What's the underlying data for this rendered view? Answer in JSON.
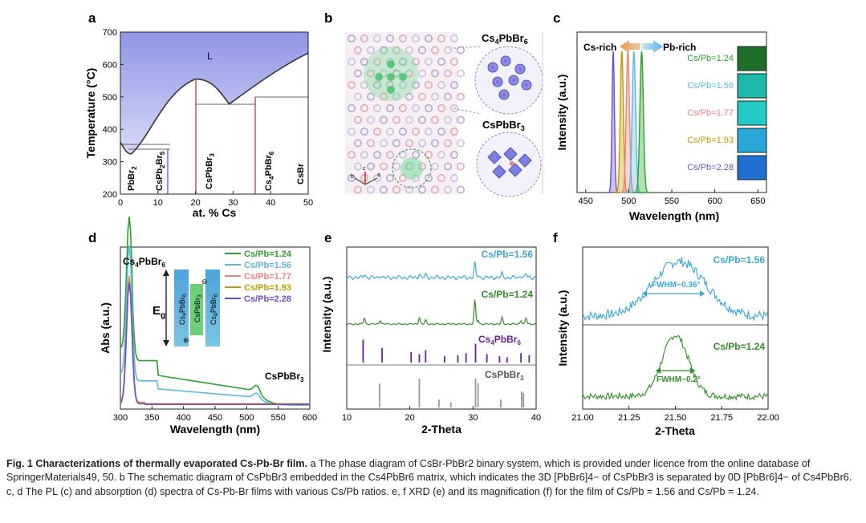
{
  "panels": {
    "a": {
      "letter": "a",
      "xlabel": "at. % Cs",
      "ylabel": "Temperature (°C)",
      "xticks": [
        "0",
        "10",
        "20",
        "30",
        "40",
        "50"
      ],
      "yticks": [
        "200",
        "300",
        "400",
        "500",
        "600",
        "700"
      ],
      "region": "L",
      "phases": [
        "PbBr2",
        "CsPb2Br5",
        "CsPbBr3",
        "Cs4PbBr6",
        "CsBr"
      ]
    },
    "b": {
      "letter": "b",
      "label_top": "Cs4PbBr6",
      "label_bottom": "CsPbBr3"
    },
    "c": {
      "letter": "c",
      "xlabel": "Wavelength (nm)",
      "ylabel": "Intensity (a.u.)",
      "xticks": [
        "450",
        "500",
        "550",
        "600",
        "650"
      ],
      "arrow_left": "Cs-rich",
      "arrow_right": "Pb-rich"
    },
    "d": {
      "letter": "d",
      "xlabel": "Wavelength (nm)",
      "ylabel": "Abs (a.u.)",
      "xticks": [
        "300",
        "350",
        "400",
        "450",
        "500",
        "550",
        "600"
      ],
      "peak_label": "Cs4PbBr6",
      "shoulder_label": "CsPbBr3",
      "eg_label": "Eg",
      "inset_outer": "Cs4PbBr6",
      "inset_inner": "CsPbBr3"
    },
    "e": {
      "letter": "e",
      "xlabel": "2-Theta",
      "ylabel": "Intensity (a.u.)",
      "xticks": [
        "10",
        "20",
        "30",
        "40"
      ],
      "label_156": "Cs/Pb=1.56",
      "label_124": "Cs/Pb=1.24",
      "ref1": "Cs4PbBr6",
      "ref2": "CsPbBr3"
    },
    "f": {
      "letter": "f",
      "xlabel": "2-Theta",
      "ylabel": "Intensity (a.u.)",
      "xticks": [
        "21.00",
        "21.25",
        "21.50",
        "21.75",
        "22.00"
      ],
      "label_156": "Cs/Pb=1.56",
      "label_124": "Cs/Pb=1.24",
      "fwhm_156": "FWHM~0.36°",
      "fwhm_124": "FWHM~0.2°"
    }
  },
  "ratios": [
    {
      "name": "Cs/Pb=1.24",
      "color": "#2ca02c"
    },
    {
      "name": "Cs/Pb=1.56",
      "color": "#5bb8e0"
    },
    {
      "name": "Cs/Pb=1.77",
      "color": "#f08080"
    },
    {
      "name": "Cs/Pb=1.93",
      "color": "#c49a00"
    },
    {
      "name": "Cs/Pb=2.28",
      "color": "#6a4fc7"
    }
  ],
  "caption": {
    "fig_label": "Fig. 1 Characterizations of thermally evaporated Cs-Pb-Br film.",
    "text": " a The phase diagram of CsBr-PbBr2 binary system, which is provided under licence from the online database of SpringerMaterials49, 50. b The schematic diagram of CsPbBr3 embedded in the Cs4PbBr6 matrix, which indicates the 3D [PbBr6]4− of CsPbBr3 is separated by 0D [PbBr6]4− of Cs4PbBr6. c, d The PL (c) and absorption (d) spectra of Cs-Pb-Br films with various Cs/Pb ratios. e, f XRD (e) and its magnification (f) for the film of Cs/Pb = 1.56 and Cs/Pb = 1.24."
  },
  "chart_data": [
    {
      "type": "line",
      "panel": "a",
      "xlabel": "at. % Cs",
      "ylabel": "Temperature (°C)",
      "xlim": [
        0,
        50
      ],
      "ylim": [
        200,
        700
      ],
      "series": [
        {
          "x": [
            0,
            3,
            10,
            20,
            25,
            29,
            36,
            40,
            50
          ],
          "y": [
            360,
            325,
            450,
            555,
            540,
            478,
            515,
            560,
            635
          ]
        }
      ]
    },
    {
      "type": "line",
      "panel": "c",
      "xlabel": "Wavelength (nm)",
      "ylabel": "Intensity (a.u.)",
      "xlim": [
        440,
        660
      ],
      "series": [
        {
          "name": "Cs/Pb=1.24",
          "peak": 515
        },
        {
          "name": "Cs/Pb=1.56",
          "peak": 506
        },
        {
          "name": "Cs/Pb=1.77",
          "peak": 499
        },
        {
          "name": "Cs/Pb=1.93",
          "peak": 492
        },
        {
          "name": "Cs/Pb=2.28",
          "peak": 482
        }
      ]
    },
    {
      "type": "line",
      "panel": "d",
      "xlabel": "Wavelength (nm)",
      "ylabel": "Abs (a.u.)",
      "xlim": [
        300,
        600
      ],
      "series": [
        {
          "name": "Cs/Pb=1.24",
          "peak": 314
        },
        {
          "name": "Cs/Pb=1.56",
          "peak": 314
        },
        {
          "name": "Cs/Pb=1.77",
          "peak": 314
        },
        {
          "name": "Cs/Pb=1.93",
          "peak": 314
        },
        {
          "name": "Cs/Pb=2.28",
          "peak": 314
        }
      ]
    },
    {
      "type": "line",
      "panel": "e",
      "xlabel": "2-Theta",
      "ylabel": "Intensity (a.u.)",
      "xlim": [
        10,
        40
      ],
      "series": [
        {
          "name": "Cs/Pb=1.56"
        },
        {
          "name": "Cs/Pb=1.24"
        }
      ]
    },
    {
      "type": "line",
      "panel": "f",
      "xlabel": "2-Theta",
      "ylabel": "Intensity (a.u.)",
      "xlim": [
        21.0,
        22.0
      ],
      "series": [
        {
          "name": "Cs/Pb=1.56"
        },
        {
          "name": "Cs/Pb=1.24"
        }
      ]
    }
  ]
}
